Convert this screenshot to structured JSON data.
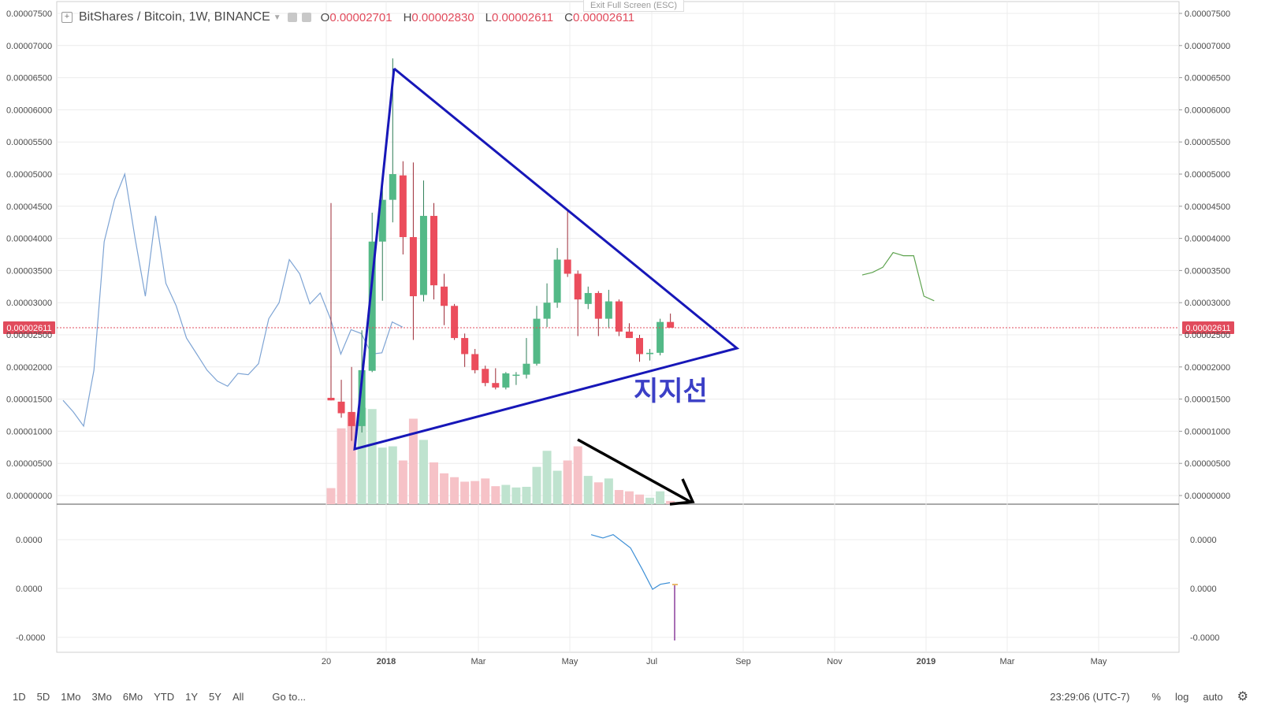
{
  "exit_fullscreen": "Exit Full Screen (ESC)",
  "legend": {
    "symbol": "BitShares / Bitcoin, 1W, BINANCE",
    "open_label": "O",
    "open": "0.00002701",
    "high_label": "H",
    "high": "0.00002830",
    "low_label": "L",
    "low": "0.00002611",
    "close_label": "C",
    "close": "0.00002611"
  },
  "last_price_tag": "0.00002611",
  "annotation": "지지선",
  "colors": {
    "up": "#53b987",
    "down": "#eb4d5c",
    "trendline": "#1717b8",
    "arrow": "#000000",
    "blue_line": "#7ea4d4",
    "green_line": "#5ea34f",
    "osc_line": "#3d8fd6",
    "grid": "#ececec"
  },
  "time_axis": [
    "20",
    "2018",
    "Mar",
    "May",
    "Jul",
    "Sep",
    "Nov",
    "2019",
    "Mar",
    "May"
  ],
  "oscillator_labels": [
    "0.0000",
    "0.0000",
    "-0.0000"
  ],
  "chart_data": {
    "type": "candlestick",
    "title": "BitShares / Bitcoin, 1W, BINANCE",
    "y_ticks": [
      "0.00007500",
      "0.00007000",
      "0.00006500",
      "0.00006000",
      "0.00005500",
      "0.00005000",
      "0.00004500",
      "0.00004000",
      "0.00003500",
      "0.00003000",
      "0.00002500",
      "0.00002000",
      "0.00001500",
      "0.00001000",
      "0.00000500",
      "0.00000000"
    ],
    "ylim": [
      0,
      7.5e-05
    ],
    "candles": [
      {
        "o": 1.52e-05,
        "h": 4.55e-05,
        "l": 1.48e-05,
        "c": 1.48e-05,
        "v": 2.5e-06
      },
      {
        "o": 1.46e-05,
        "h": 1.8e-05,
        "l": 1.21e-05,
        "c": 1.28e-05,
        "v": 1.18e-05
      },
      {
        "o": 1.3e-05,
        "h": 2e-05,
        "l": 8.5e-06,
        "c": 1.08e-05,
        "v": 1.43e-05
      },
      {
        "o": 1.08e-05,
        "h": 2.57e-05,
        "l": 9.8e-06,
        "c": 1.95e-05,
        "v": 1.5e-05
      },
      {
        "o": 1.94e-05,
        "h": 4.4e-05,
        "l": 1.92e-05,
        "c": 3.95e-05,
        "v": 1.48e-05
      },
      {
        "o": 3.95e-05,
        "h": 4.95e-05,
        "l": 3.03e-05,
        "c": 4.6e-05,
        "v": 8.8e-06
      },
      {
        "o": 4.6e-05,
        "h": 6.8e-05,
        "l": 4.25e-05,
        "c": 5e-05,
        "v": 9e-06
      },
      {
        "o": 4.98e-05,
        "h": 5.2e-05,
        "l": 3.75e-05,
        "c": 4.02e-05,
        "v": 6.8e-06
      },
      {
        "o": 4.02e-05,
        "h": 5.18e-05,
        "l": 2.42e-05,
        "c": 3.1e-05,
        "v": 1.33e-05
      },
      {
        "o": 3.12e-05,
        "h": 4.9e-05,
        "l": 3.02e-05,
        "c": 4.35e-05,
        "v": 1e-05
      },
      {
        "o": 4.35e-05,
        "h": 4.55e-05,
        "l": 3.05e-05,
        "c": 3.27e-05,
        "v": 6.5e-06
      },
      {
        "o": 3.25e-05,
        "h": 3.45e-05,
        "l": 2.65e-05,
        "c": 2.95e-05,
        "v": 4.8e-06
      },
      {
        "o": 2.95e-05,
        "h": 2.98e-05,
        "l": 2.42e-05,
        "c": 2.45e-05,
        "v": 4.2e-06
      },
      {
        "o": 2.45e-05,
        "h": 2.52e-05,
        "l": 2e-05,
        "c": 2.2e-05,
        "v": 3.5e-06
      },
      {
        "o": 2.2e-05,
        "h": 2.28e-05,
        "l": 1.9e-05,
        "c": 1.95e-05,
        "v": 3.6e-06
      },
      {
        "o": 1.97e-05,
        "h": 2.02e-05,
        "l": 1.7e-05,
        "c": 1.75e-05,
        "v": 4e-06
      },
      {
        "o": 1.75e-05,
        "h": 1.98e-05,
        "l": 1.65e-05,
        "c": 1.68e-05,
        "v": 2.8e-06
      },
      {
        "o": 1.68e-05,
        "h": 1.92e-05,
        "l": 1.65e-05,
        "c": 1.9e-05,
        "v": 3e-06
      },
      {
        "o": 1.88e-05,
        "h": 1.92e-05,
        "l": 1.72e-05,
        "c": 1.88e-05,
        "v": 2.6e-06
      },
      {
        "o": 1.88e-05,
        "h": 2.45e-05,
        "l": 1.82e-05,
        "c": 2.05e-05,
        "v": 2.7e-06
      },
      {
        "o": 2.05e-05,
        "h": 2.95e-05,
        "l": 2.02e-05,
        "c": 2.75e-05,
        "v": 5.8e-06
      },
      {
        "o": 2.75e-05,
        "h": 3.3e-05,
        "l": 2.62e-05,
        "c": 3e-05,
        "v": 8.3e-06
      },
      {
        "o": 3e-05,
        "h": 3.85e-05,
        "l": 2.92e-05,
        "c": 3.67e-05,
        "v": 5.2e-06
      },
      {
        "o": 3.67e-05,
        "h": 4.45e-05,
        "l": 3.4e-05,
        "c": 3.45e-05,
        "v": 6.8e-06
      },
      {
        "o": 3.45e-05,
        "h": 3.5e-05,
        "l": 2.48e-05,
        "c": 3.05e-05,
        "v": 9e-06
      },
      {
        "o": 2.98e-05,
        "h": 3.25e-05,
        "l": 2.9e-05,
        "c": 3.15e-05,
        "v": 4.4e-06
      },
      {
        "o": 3.15e-05,
        "h": 3.18e-05,
        "l": 2.48e-05,
        "c": 2.75e-05,
        "v": 3.4e-06
      },
      {
        "o": 2.75e-05,
        "h": 3.2e-05,
        "l": 2.6e-05,
        "c": 3.02e-05,
        "v": 4e-06
      },
      {
        "o": 3.02e-05,
        "h": 3.05e-05,
        "l": 2.48e-05,
        "c": 2.55e-05,
        "v": 2.2e-06
      },
      {
        "o": 2.55e-05,
        "h": 2.68e-05,
        "l": 2.45e-05,
        "c": 2.45e-05,
        "v": 2e-06
      },
      {
        "o": 2.45e-05,
        "h": 2.5e-05,
        "l": 2.08e-05,
        "c": 2.2e-05,
        "v": 1.5e-06
      },
      {
        "o": 2.2e-05,
        "h": 2.28e-05,
        "l": 2.1e-05,
        "c": 2.22e-05,
        "v": 1e-06
      },
      {
        "o": 2.22e-05,
        "h": 2.75e-05,
        "l": 2.18e-05,
        "c": 2.7e-05,
        "v": 2e-06
      },
      {
        "o": 2.7e-05,
        "h": 2.83e-05,
        "l": 2.61e-05,
        "c": 2.61e-05,
        "v": 5e-07
      }
    ],
    "overlay_blue": [
      1.48e-05,
      1.3e-05,
      1.08e-05,
      1.95e-05,
      3.95e-05,
      4.6e-05,
      5e-05,
      4e-05,
      3.1e-05,
      4.35e-05,
      3.3e-05,
      2.95e-05,
      2.45e-05,
      2.2e-05,
      1.95e-05,
      1.78e-05,
      1.7e-05,
      1.9e-05,
      1.88e-05,
      2.05e-05,
      2.75e-05,
      3e-05,
      3.67e-05,
      3.45e-05,
      2.98e-05,
      3.15e-05,
      2.75e-05,
      2.2e-05,
      2.58e-05,
      2.52e-05,
      2.2e-05,
      2.22e-05,
      2.7e-05,
      2.62e-05
    ],
    "overlay_green": [
      3.43e-05,
      3.47e-05,
      3.55e-05,
      3.78e-05,
      3.73e-05,
      3.73e-05,
      3.1e-05,
      3.03e-05
    ],
    "oscillator": [
      3e-06,
      1e-06,
      3e-06,
      -5e-06,
      -1.8e-05,
      -3e-05,
      -2.7e-05,
      -2.6e-05
    ]
  },
  "bottom_bar": {
    "ranges": [
      "1D",
      "5D",
      "1Mo",
      "3Mo",
      "6Mo",
      "YTD",
      "1Y",
      "5Y",
      "All"
    ],
    "goto": "Go to...",
    "time": "23:29:06 (UTC-7)",
    "percent": "%",
    "log": "log",
    "auto": "auto"
  }
}
